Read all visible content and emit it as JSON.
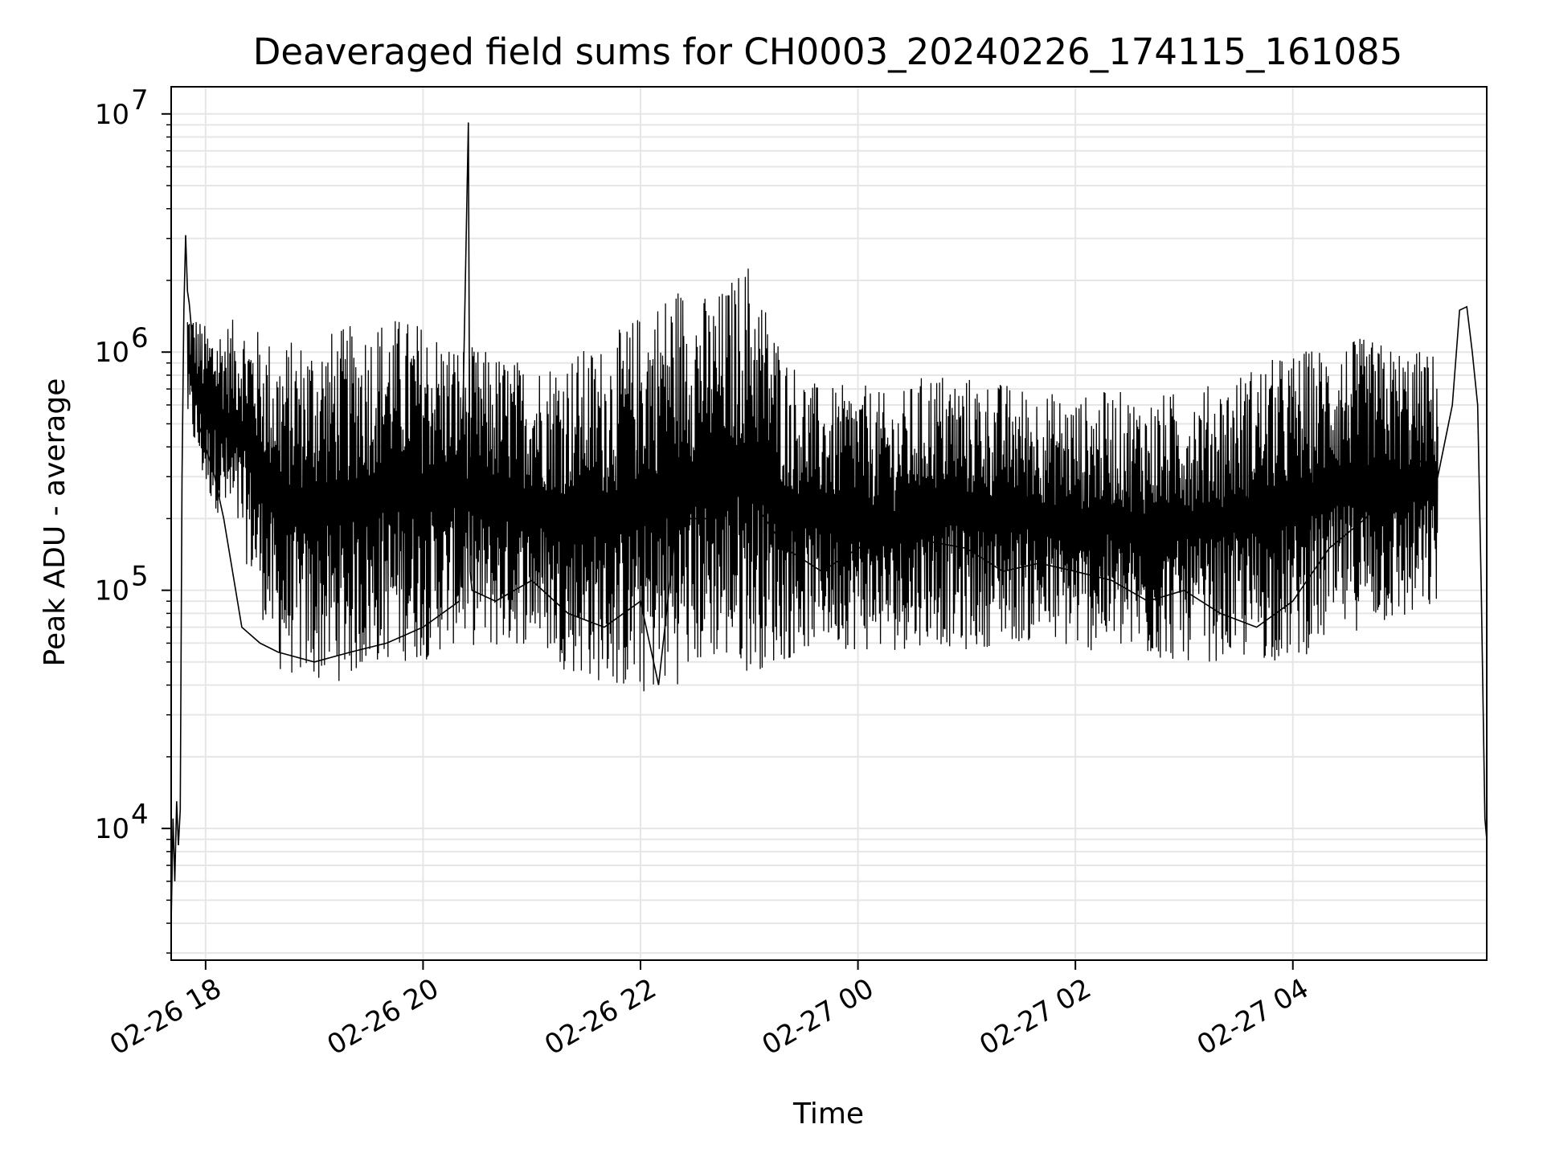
{
  "chart_data": {
    "type": "line",
    "title": "Deaveraged field sums for CH0003_20240226_174115_161085",
    "xlabel": "Time",
    "ylabel": "Peak ADU - average",
    "yscale": "log",
    "ylim": [
      2800,
      13000000
    ],
    "xlim": [
      "2024-02-26 17:41",
      "2024-02-27 05:47"
    ],
    "grid": true,
    "grid_minor": true,
    "legend": "none",
    "line_color": "#000000",
    "x_ticks": [
      {
        "value": "2024-02-26 18:00",
        "label": "02-26 18"
      },
      {
        "value": "2024-02-26 20:00",
        "label": "02-26 20"
      },
      {
        "value": "2024-02-26 22:00",
        "label": "02-26 22"
      },
      {
        "value": "2024-02-27 00:00",
        "label": "02-27 00"
      },
      {
        "value": "2024-02-27 02:00",
        "label": "02-27 02"
      },
      {
        "value": "2024-02-27 04:00",
        "label": "02-27 04"
      }
    ],
    "y_ticks": [
      {
        "value": 10000,
        "base": "10",
        "exp": "4"
      },
      {
        "value": 100000,
        "base": "10",
        "exp": "5"
      },
      {
        "value": 1000000,
        "base": "10",
        "exp": "6"
      },
      {
        "value": 10000000,
        "base": "10",
        "exp": "7"
      }
    ],
    "series": [
      {
        "x": [
          "2024-02-26 17:41",
          "2024-02-26 17:42",
          "2024-02-26 17:43",
          "2024-02-26 17:44",
          "2024-02-26 17:45",
          "2024-02-26 17:46",
          "2024-02-26 17:47",
          "2024-02-26 17:48",
          "2024-02-26 17:49",
          "2024-02-26 17:50",
          "2024-02-26 17:51",
          "2024-02-26 17:52",
          "2024-02-26 17:53",
          "2024-02-26 17:54",
          "2024-02-26 17:55",
          "2024-02-26 17:56",
          "2024-02-26 17:58",
          "2024-02-26 18:00",
          "2024-02-26 18:05",
          "2024-02-26 18:10",
          "2024-02-26 18:20",
          "2024-02-26 18:30",
          "2024-02-26 18:40",
          "2024-02-26 19:00",
          "2024-02-26 19:20",
          "2024-02-26 19:40",
          "2024-02-26 20:00",
          "2024-02-26 20:20",
          "2024-02-26 20:25",
          "2024-02-26 20:26",
          "2024-02-26 20:27",
          "2024-02-26 20:40",
          "2024-02-26 21:00",
          "2024-02-26 21:20",
          "2024-02-26 21:40",
          "2024-02-26 22:00",
          "2024-02-26 22:10",
          "2024-02-26 22:20",
          "2024-02-26 22:40",
          "2024-02-26 22:55",
          "2024-02-26 23:00",
          "2024-02-26 23:20",
          "2024-02-26 23:40",
          "2024-02-27 00:00",
          "2024-02-27 00:20",
          "2024-02-27 00:40",
          "2024-02-27 01:00",
          "2024-02-27 01:20",
          "2024-02-27 01:40",
          "2024-02-27 02:00",
          "2024-02-27 02:20",
          "2024-02-27 02:40",
          "2024-02-27 03:00",
          "2024-02-27 03:20",
          "2024-02-27 03:40",
          "2024-02-27 04:00",
          "2024-02-27 04:20",
          "2024-02-27 04:40",
          "2024-02-27 05:00",
          "2024-02-27 05:10",
          "2024-02-27 05:20",
          "2024-02-27 05:28",
          "2024-02-27 05:32",
          "2024-02-27 05:36",
          "2024-02-27 05:39",
          "2024-02-27 05:42",
          "2024-02-27 05:44",
          "2024-02-27 05:46",
          "2024-02-27 05:47"
        ],
        "y": [
          4000,
          11000,
          6000,
          13000,
          8500,
          12000,
          300000,
          1500000,
          3100000,
          1800000,
          1600000,
          1300000,
          1000000,
          800000,
          700000,
          500000,
          450000,
          400000,
          300000,
          200000,
          70000,
          60000,
          55000,
          50000,
          55000,
          60000,
          70000,
          90000,
          9200000,
          120000,
          100000,
          90000,
          110000,
          80000,
          70000,
          90000,
          40000,
          200000,
          200000,
          300000,
          250000,
          150000,
          120000,
          150000,
          180000,
          160000,
          150000,
          120000,
          130000,
          120000,
          110000,
          90000,
          100000,
          80000,
          70000,
          90000,
          150000,
          200000,
          300000,
          350000,
          300000,
          600000,
          1500000,
          1550000,
          1000000,
          600000,
          100000,
          11000,
          9000
        ]
      }
    ],
    "envelope": {
      "x": [
        "2024-02-26 17:50",
        "2024-02-26 18:00",
        "2024-02-26 18:20",
        "2024-02-26 18:40",
        "2024-02-26 19:00",
        "2024-02-26 19:20",
        "2024-02-26 19:40",
        "2024-02-26 20:00",
        "2024-02-26 20:20",
        "2024-02-26 20:40",
        "2024-02-26 21:00",
        "2024-02-26 21:20",
        "2024-02-26 21:40",
        "2024-02-26 22:00",
        "2024-02-26 22:20",
        "2024-02-26 22:40",
        "2024-02-26 23:00",
        "2024-02-26 23:20",
        "2024-02-26 23:40",
        "2024-02-27 00:00",
        "2024-02-27 00:20",
        "2024-02-27 00:40",
        "2024-02-27 01:00",
        "2024-02-27 01:20",
        "2024-02-27 01:40",
        "2024-02-27 02:00",
        "2024-02-27 02:20",
        "2024-02-27 02:40",
        "2024-02-27 03:00",
        "2024-02-27 03:20",
        "2024-02-27 03:40",
        "2024-02-27 04:00",
        "2024-02-27 04:20",
        "2024-02-27 04:40",
        "2024-02-27 05:00",
        "2024-02-27 05:20"
      ],
      "upper": [
        1600000,
        1300000,
        1400000,
        1100000,
        1200000,
        1300000,
        1450000,
        1350000,
        1100000,
        1000000,
        900000,
        1000000,
        1100000,
        1500000,
        2000000,
        1700000,
        2500000,
        1000000,
        700000,
        750000,
        650000,
        850000,
        800000,
        750000,
        700000,
        650000,
        700000,
        650000,
        700000,
        750000,
        900000,
        1000000,
        1100000,
        1150000,
        1050000,
        1000000
      ],
      "lower": [
        500000,
        250000,
        150000,
        45000,
        40000,
        42000,
        50000,
        50000,
        60000,
        55000,
        60000,
        45000,
        40000,
        35000,
        40000,
        50000,
        45000,
        50000,
        60000,
        55000,
        55000,
        60000,
        55000,
        60000,
        60000,
        55000,
        55000,
        50000,
        50000,
        50000,
        50000,
        50000,
        60000,
        70000,
        70000,
        80000
      ]
    }
  }
}
